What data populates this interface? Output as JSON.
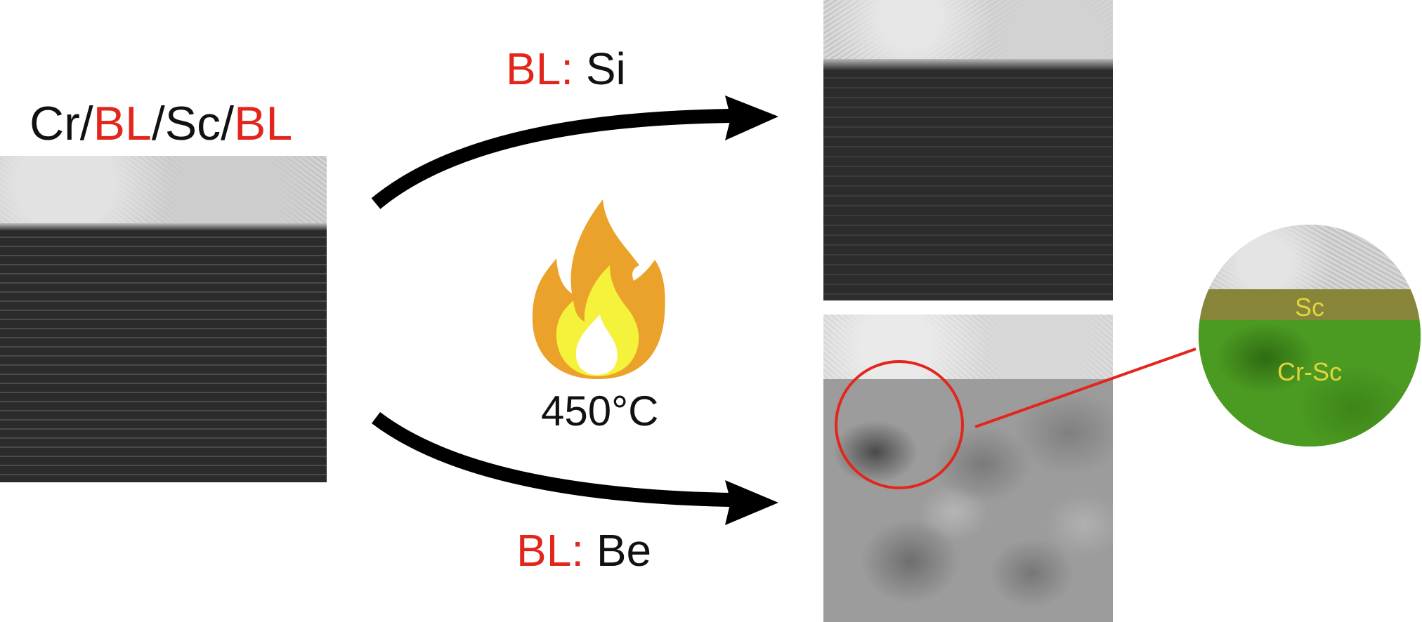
{
  "colors": {
    "accent_red": "#e3261c",
    "text_black": "#111111",
    "flame_outer": "#eba22a",
    "flame_mid": "#f4f23a",
    "flame_inner": "#ffffff",
    "label_yellow": "#e3d43a",
    "overlay_green": "#3f8f1a",
    "overlay_olive": "#86853a"
  },
  "title": {
    "part1": "Cr/",
    "part2": "BL",
    "part3": "/Sc/",
    "part4": "BL"
  },
  "top_branch": {
    "prefix": "BL:",
    "element": "Si"
  },
  "bottom_branch": {
    "prefix": "BL:",
    "element": "Be"
  },
  "anneal": {
    "icon": "flame-icon",
    "temperature": "450°C"
  },
  "zoom": {
    "layer_top": "Sc",
    "layer_bottom": "Cr-Sc"
  }
}
